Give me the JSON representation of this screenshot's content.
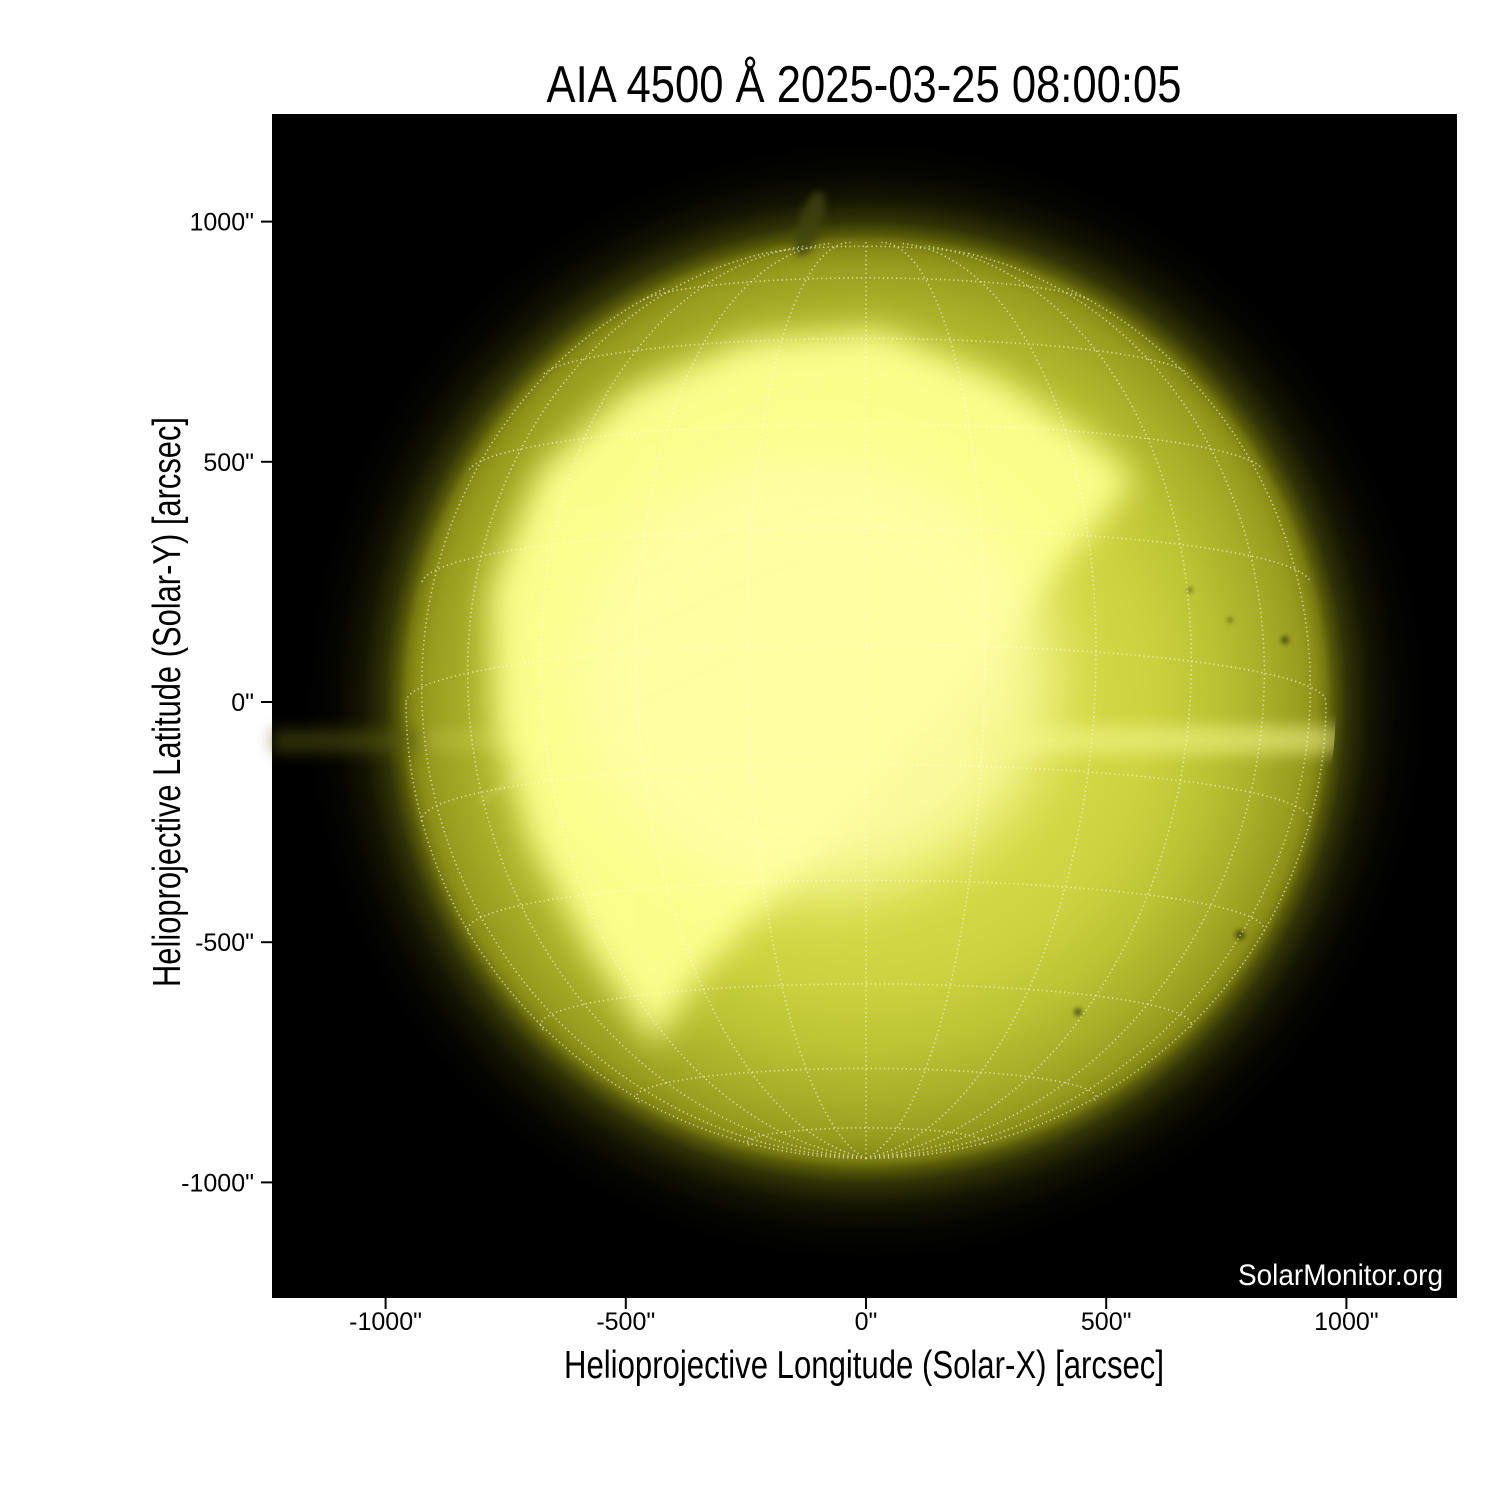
{
  "figure": {
    "title": "AIA 4500 Å 2025-03-25 08:00:05",
    "xlabel": "Helioprojective Longitude (Solar-X) [arcsec]",
    "ylabel": "Helioprojective Latitude (Solar-Y) [arcsec]",
    "watermark": "SolarMonitor.org"
  },
  "axes": {
    "x_ticks": [
      {
        "label": "-1000\"",
        "value": -1000
      },
      {
        "label": "-500\"",
        "value": -500
      },
      {
        "label": "0\"",
        "value": 0
      },
      {
        "label": "500\"",
        "value": 500
      },
      {
        "label": "1000\"",
        "value": 1000
      }
    ],
    "y_ticks": [
      {
        "label": "1000\"",
        "value": 1000
      },
      {
        "label": "500\"",
        "value": 500
      },
      {
        "label": "0\"",
        "value": 0
      },
      {
        "label": "-500\"",
        "value": -500
      },
      {
        "label": "-1000\"",
        "value": -1000
      }
    ]
  },
  "chart_data": {
    "type": "heatmap",
    "title": "AIA 4500 Å 2025-03-25 08:00:05",
    "instrument": "AIA",
    "wavelength": "4500 Å",
    "observation_time": "2025-03-25 08:00:05",
    "xlabel": "Helioprojective Longitude (Solar-X) [arcsec]",
    "ylabel": "Helioprojective Latitude (Solar-Y) [arcsec]",
    "xlim": [
      -1232,
      1232
    ],
    "ylim": [
      -1232,
      1232
    ],
    "x_tick_values": [
      -1000,
      -500,
      0,
      500,
      1000
    ],
    "y_tick_values": [
      1000,
      500,
      0,
      -500,
      -1000
    ],
    "grid": "dotted heliographic (Stonyhurst) grid overlay, 15 degree spacing, south pole visible just inside lower limb",
    "legend_position": "none",
    "background": "black sky",
    "solar_disk": {
      "center_arcsec": [
        0,
        0
      ],
      "radius_arcsec": 958,
      "b0_deg": -7.2,
      "features": [
        "overexposed pale-yellow saturated core covering the disk center",
        "sharp diagonal saturation boundary running from upper right (~+560\",+470\") to lower left (~-430\",-720\")",
        "bright wedge extending toward the northeast limb",
        "narrow bright streak extending to the southwest",
        "faint horizontal bright band near y = -75\" reaching the west limb",
        "limb darkening and faint off-limb glow",
        "thin faint filament arcs on the eastern hemisphere"
      ]
    },
    "credit_text": "SolarMonitor.org"
  },
  "colors": {
    "figure_bg": "#ffffff",
    "plot_bg": "#000000",
    "text": "#000000",
    "watermark_text": "#ffffff",
    "disk_core": "#ffff80",
    "disk_bright": "#eef06e",
    "disk_mid": "#c6cb3a",
    "disk_limb": "#8d9118",
    "halo": "#3c3e08",
    "grid_dots": "#ffffe8"
  }
}
